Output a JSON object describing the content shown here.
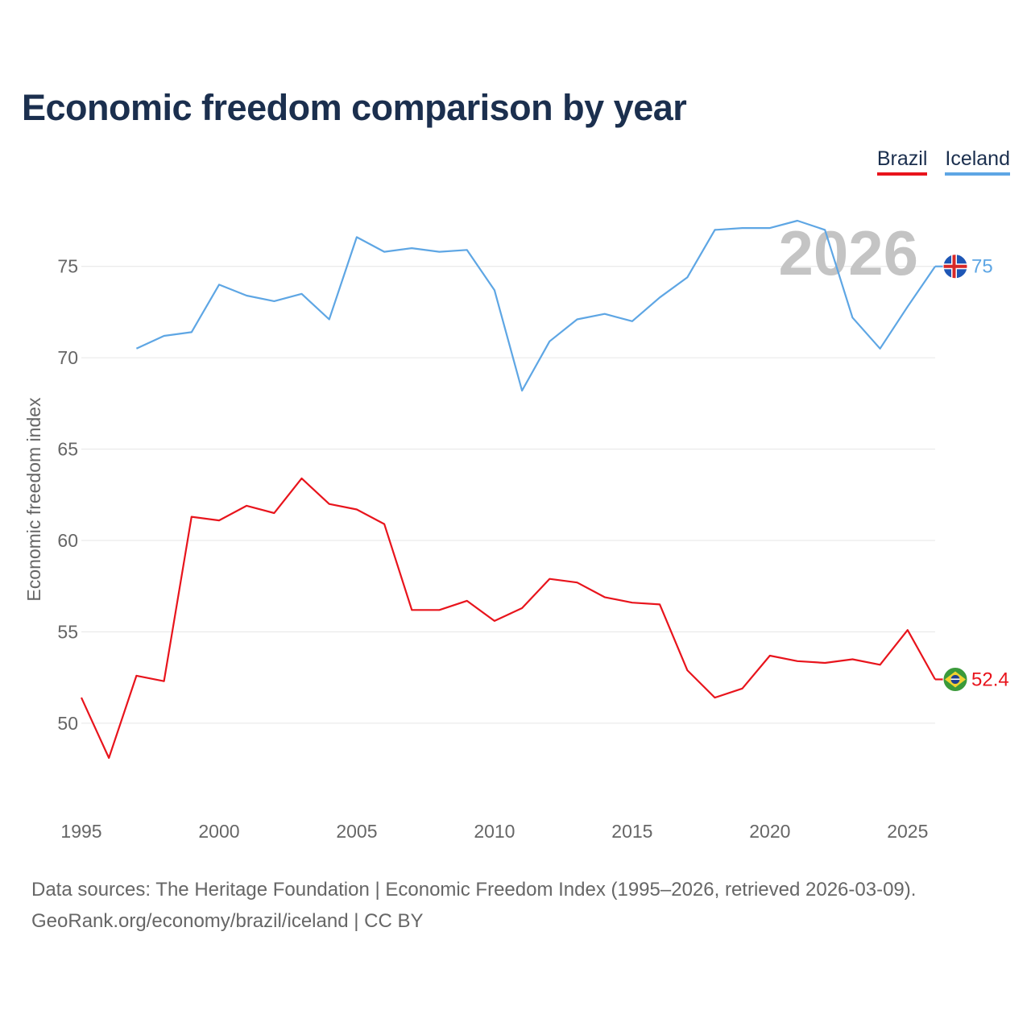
{
  "title": "Economic freedom comparison by year",
  "legend": [
    {
      "label": "Brazil",
      "color": "#e8141c"
    },
    {
      "label": "Iceland",
      "color": "#5ea6e4"
    }
  ],
  "footer": {
    "line1": "Data sources: The Heritage Foundation | Economic Freedom Index (1995–2026, retrieved 2026-03-09).",
    "line2": "GeoRank.org/economy/brazil/iceland | CC BY"
  },
  "chart_data": {
    "type": "line",
    "title": "Economic freedom comparison by year",
    "xlabel": "",
    "ylabel": "Economic freedom index",
    "watermark": "2026",
    "xlim": [
      1995,
      2026
    ],
    "ylim": [
      45.5,
      79
    ],
    "yticks": [
      50,
      55,
      60,
      65,
      70,
      75
    ],
    "xticks": [
      1995,
      2000,
      2005,
      2010,
      2015,
      2020,
      2025
    ],
    "grid": true,
    "legend_position": "top-right",
    "series": [
      {
        "name": "Brazil",
        "color": "#e8141c",
        "end_label": "52.4",
        "flag_icon": "brazil-flag-icon",
        "points": [
          [
            1995,
            51.4
          ],
          [
            1996,
            48.1
          ],
          [
            1997,
            52.6
          ],
          [
            1998,
            52.3
          ],
          [
            1999,
            61.3
          ],
          [
            2000,
            61.1
          ],
          [
            2001,
            61.9
          ],
          [
            2002,
            61.5
          ],
          [
            2003,
            63.4
          ],
          [
            2004,
            62.0
          ],
          [
            2005,
            61.7
          ],
          [
            2006,
            60.9
          ],
          [
            2007,
            56.2
          ],
          [
            2008,
            56.2
          ],
          [
            2009,
            56.7
          ],
          [
            2010,
            55.6
          ],
          [
            2011,
            56.3
          ],
          [
            2012,
            57.9
          ],
          [
            2013,
            57.7
          ],
          [
            2014,
            56.9
          ],
          [
            2015,
            56.6
          ],
          [
            2016,
            56.5
          ],
          [
            2017,
            52.9
          ],
          [
            2018,
            51.4
          ],
          [
            2019,
            51.9
          ],
          [
            2020,
            53.7
          ],
          [
            2021,
            53.4
          ],
          [
            2022,
            53.3
          ],
          [
            2023,
            53.5
          ],
          [
            2024,
            53.2
          ],
          [
            2025,
            55.1
          ],
          [
            2026,
            52.4
          ]
        ]
      },
      {
        "name": "Iceland",
        "color": "#5ea6e4",
        "end_label": "75",
        "flag_icon": "iceland-flag-icon",
        "points": [
          [
            1997,
            70.5
          ],
          [
            1998,
            71.2
          ],
          [
            1999,
            71.4
          ],
          [
            2000,
            74.0
          ],
          [
            2001,
            73.4
          ],
          [
            2002,
            73.1
          ],
          [
            2003,
            73.5
          ],
          [
            2004,
            72.1
          ],
          [
            2005,
            76.6
          ],
          [
            2006,
            75.8
          ],
          [
            2007,
            76.0
          ],
          [
            2008,
            75.8
          ],
          [
            2009,
            75.9
          ],
          [
            2010,
            73.7
          ],
          [
            2011,
            68.2
          ],
          [
            2012,
            70.9
          ],
          [
            2013,
            72.1
          ],
          [
            2014,
            72.4
          ],
          [
            2015,
            72.0
          ],
          [
            2016,
            73.3
          ],
          [
            2017,
            74.4
          ],
          [
            2018,
            77.0
          ],
          [
            2019,
            77.1
          ],
          [
            2020,
            77.1
          ],
          [
            2021,
            77.5
          ],
          [
            2022,
            77.0
          ],
          [
            2023,
            72.2
          ],
          [
            2024,
            70.5
          ],
          [
            2025,
            72.8
          ],
          [
            2026,
            75.0
          ]
        ]
      }
    ]
  }
}
